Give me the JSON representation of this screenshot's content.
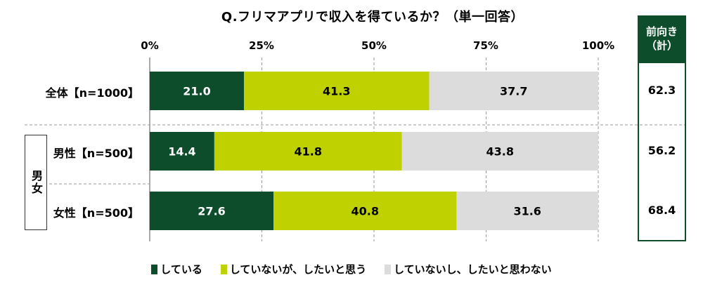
{
  "title": "Q.フリマアプリで収入を得ているか？（単一回答）",
  "axis_ticks": [
    "0%",
    "25%",
    "50%",
    "75%",
    "100%"
  ],
  "group_label": "男女",
  "right_column": {
    "header_line1": "前向き",
    "header_line2": "（計）",
    "values": [
      "62.3",
      "56.2",
      "68.4"
    ]
  },
  "colors": {
    "している": "#0d4d2b",
    "していないが、したいと思う": "#bfd200",
    "していないし、したいと思わない": "#dcdcdc"
  },
  "chart_data": {
    "type": "bar",
    "orientation": "horizontal",
    "stacked": true,
    "title": "Q.フリマアプリで収入を得ているか？（単一回答）",
    "categories": [
      "全体【n=1000】",
      "男性【n=500】",
      "女性【n=500】"
    ],
    "series": [
      {
        "name": "している",
        "values": [
          21.0,
          14.4,
          27.6
        ],
        "color": "#0d4d2b"
      },
      {
        "name": "していないが、したいと思う",
        "values": [
          41.3,
          41.8,
          40.8
        ],
        "color": "#bfd200"
      },
      {
        "name": "していないし、したいと思わない",
        "values": [
          37.7,
          43.8,
          31.6
        ],
        "color": "#dcdcdc"
      }
    ],
    "xlim": [
      0,
      100
    ],
    "x_ticks": [
      0,
      25,
      50,
      75,
      100
    ],
    "grid": "vertical dashed",
    "legend": "bottom"
  }
}
